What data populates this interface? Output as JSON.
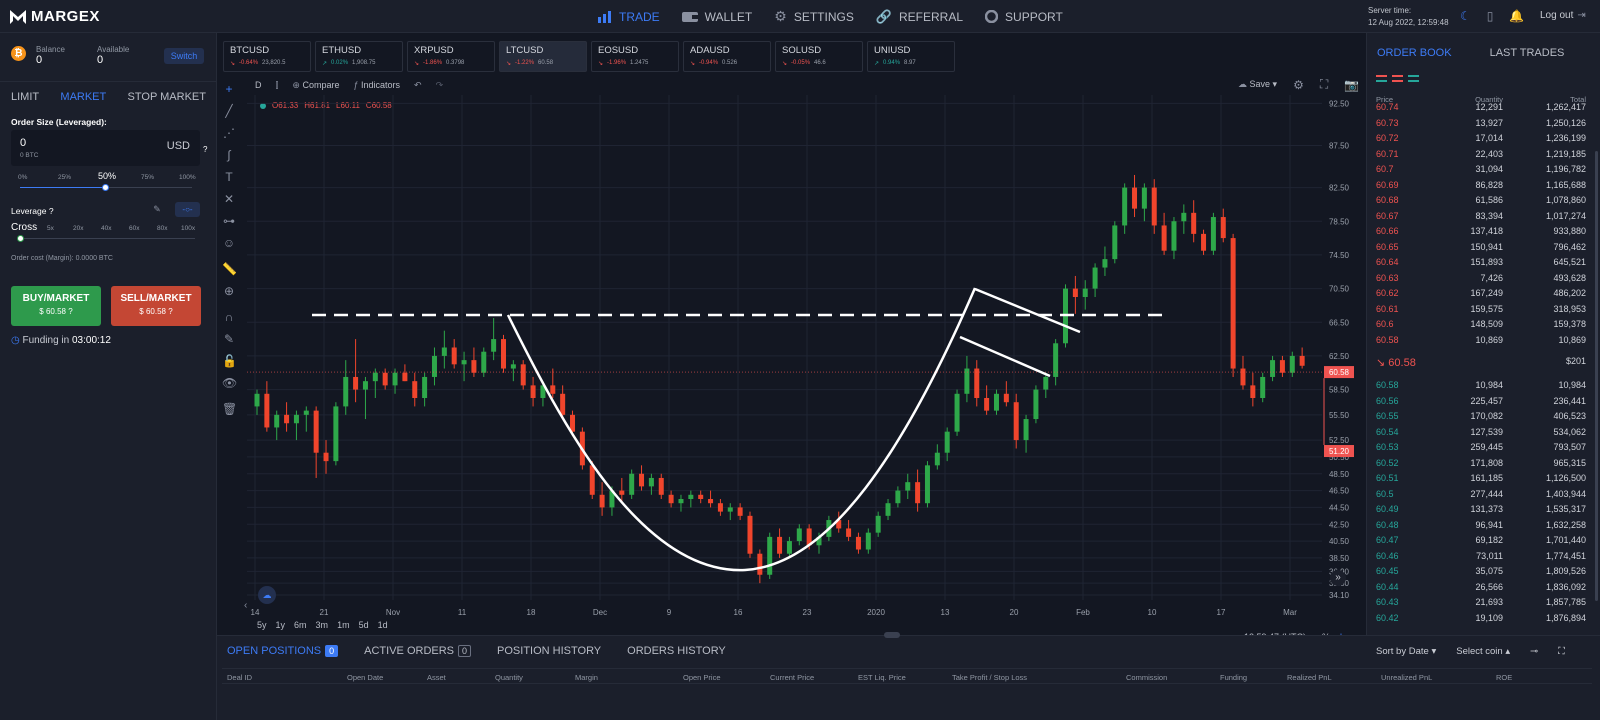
{
  "brand": "MARGEX",
  "nav": [
    {
      "label": "TRADE",
      "icon": "bar-chart-icon"
    },
    {
      "label": "WALLET",
      "icon": "wallet-icon"
    },
    {
      "label": "SETTINGS",
      "icon": "gear-icon"
    },
    {
      "label": "REFERRAL",
      "icon": "link-icon"
    },
    {
      "label": "SUPPORT",
      "icon": "lifebuoy-icon"
    }
  ],
  "server": {
    "label": "Server time:",
    "time": "12 Aug 2022, 12:59:48"
  },
  "logout": "Log out",
  "account": {
    "balance_label": "Balance",
    "balance": "0",
    "available_label": "Available",
    "available": "0",
    "switch": "Switch"
  },
  "order_tabs": [
    "LIMIT",
    "MARKET",
    "STOP MARKET"
  ],
  "order": {
    "size_label": "Order Size (Leveraged):",
    "value": "0",
    "sub": "0 BTC",
    "currency": "USD",
    "slider": [
      "0%",
      "25%",
      "50%",
      "75%",
      "100%"
    ],
    "slider_value": 0.5,
    "leverage_label": "Leverage",
    "leverage_opts": [
      "Cross",
      "5x",
      "20x",
      "40x",
      "60x",
      "80x",
      "100x"
    ],
    "cost": "Order cost (Margin): 0.0000 BTC",
    "buy": "BUY/MARKET",
    "buy_price": "$ 60.58",
    "sell": "SELL/MARKET",
    "sell_price": "$ 60.58",
    "funding_label": "Funding in",
    "funding": "03:00:12"
  },
  "tickers": [
    {
      "sym": "BTCUSD",
      "chg": "-0.64%",
      "price": "23,820.5",
      "dir": "neg"
    },
    {
      "sym": "ETHUSD",
      "chg": "0.02%",
      "price": "1,908.75",
      "dir": "pos"
    },
    {
      "sym": "XRPUSD",
      "chg": "-1.86%",
      "price": "0.3798",
      "dir": "neg"
    },
    {
      "sym": "LTCUSD",
      "chg": "-1.22%",
      "price": "60.58",
      "dir": "neg"
    },
    {
      "sym": "EOSUSD",
      "chg": "-1.96%",
      "price": "1.2475",
      "dir": "neg"
    },
    {
      "sym": "ADAUSD",
      "chg": "-0.94%",
      "price": "0.526",
      "dir": "neg"
    },
    {
      "sym": "SOLUSD",
      "chg": "-0.05%",
      "price": "46.6",
      "dir": "neg"
    },
    {
      "sym": "UNIUSD",
      "chg": "0.94%",
      "price": "8.97",
      "dir": "pos"
    }
  ],
  "toolbar": {
    "interval": "D",
    "compare": "Compare",
    "indicators": "Indicators",
    "save": "Save"
  },
  "ohlc": {
    "o": "O61.33",
    "h": "H61.81",
    "l": "L60.11",
    "c": "C60.58"
  },
  "timeframes": [
    "5y",
    "1y",
    "6m",
    "3m",
    "1m",
    "5d",
    "1d"
  ],
  "chart_footer": {
    "time": "12:59:47 (UTC)",
    "pct": "%",
    "log": "log",
    "auto": "auto"
  },
  "chart_data": {
    "type": "candlestick",
    "ylim": [
      33.5,
      93.5
    ],
    "y_ticks": [
      "92.50",
      "87.50",
      "82.50",
      "78.50",
      "74.50",
      "70.50",
      "66.50",
      "62.50",
      "58.50",
      "55.50",
      "52.50",
      "50.50",
      "48.50",
      "46.50",
      "44.50",
      "42.50",
      "40.50",
      "38.50",
      "36.90",
      "35.50",
      "34.10"
    ],
    "x_ticks": [
      "14",
      "21",
      "Nov",
      "11",
      "18",
      "Dec",
      "9",
      "16",
      "23",
      "2020",
      "13",
      "20",
      "Feb",
      "10",
      "17",
      "Mar"
    ],
    "last_price": "60.58",
    "marker": "51.20",
    "candles": [
      [
        56.5,
        58.5,
        55.5,
        58.0
      ],
      [
        58.0,
        59.5,
        53.5,
        54.0
      ],
      [
        54.0,
        56.0,
        52.5,
        55.5
      ],
      [
        55.5,
        57.0,
        53.5,
        54.5
      ],
      [
        54.5,
        56.0,
        52.5,
        55.5
      ],
      [
        55.5,
        56.5,
        53.5,
        56.0
      ],
      [
        56.0,
        56.5,
        48.0,
        51.0
      ],
      [
        51.0,
        52.5,
        48.5,
        50.0
      ],
      [
        50.0,
        57.0,
        49.5,
        56.5
      ],
      [
        56.5,
        62.0,
        55.5,
        60.0
      ],
      [
        60.0,
        64.5,
        57.0,
        58.5
      ],
      [
        58.5,
        60.0,
        55.0,
        59.5
      ],
      [
        59.5,
        61.0,
        57.5,
        60.5
      ],
      [
        60.5,
        61.0,
        58.5,
        59.0
      ],
      [
        59.0,
        61.0,
        58.0,
        60.5
      ],
      [
        60.5,
        61.5,
        59.5,
        59.5
      ],
      [
        59.5,
        60.5,
        56.5,
        57.5
      ],
      [
        57.5,
        60.5,
        56.5,
        60.0
      ],
      [
        60.0,
        63.5,
        59.0,
        62.5
      ],
      [
        62.5,
        65.5,
        61.0,
        63.5
      ],
      [
        63.5,
        64.5,
        61.0,
        61.5
      ],
      [
        61.5,
        63.0,
        59.5,
        62.0
      ],
      [
        62.0,
        63.5,
        60.0,
        60.5
      ],
      [
        60.5,
        63.5,
        60.0,
        63.0
      ],
      [
        63.0,
        67.0,
        62.0,
        64.5
      ],
      [
        64.5,
        65.0,
        60.5,
        61.0
      ],
      [
        61.0,
        62.0,
        59.5,
        61.5
      ],
      [
        61.5,
        62.0,
        58.5,
        59.0
      ],
      [
        59.0,
        60.0,
        56.5,
        57.5
      ],
      [
        57.5,
        59.5,
        56.5,
        59.0
      ],
      [
        59.0,
        61.0,
        57.5,
        58.0
      ],
      [
        58.0,
        59.0,
        55.0,
        55.5
      ],
      [
        55.5,
        56.0,
        53.0,
        53.5
      ],
      [
        53.5,
        54.0,
        49.0,
        49.5
      ],
      [
        49.5,
        50.0,
        45.5,
        46.0
      ],
      [
        46.0,
        47.5,
        43.5,
        44.5
      ],
      [
        44.5,
        47.0,
        43.5,
        46.5
      ],
      [
        46.5,
        48.0,
        45.0,
        46.0
      ],
      [
        46.0,
        49.0,
        45.5,
        48.5
      ],
      [
        48.5,
        49.5,
        46.5,
        47.0
      ],
      [
        47.0,
        48.5,
        46.0,
        48.0
      ],
      [
        48.0,
        48.5,
        45.5,
        46.0
      ],
      [
        46.0,
        46.5,
        44.5,
        45.0
      ],
      [
        45.0,
        46.0,
        44.0,
        45.5
      ],
      [
        45.5,
        46.5,
        44.5,
        46.0
      ],
      [
        46.0,
        46.5,
        45.0,
        45.5
      ],
      [
        45.5,
        46.5,
        44.5,
        45.0
      ],
      [
        45.0,
        45.5,
        43.5,
        44.0
      ],
      [
        44.0,
        45.0,
        43.0,
        44.5
      ],
      [
        44.5,
        45.0,
        43.0,
        43.5
      ],
      [
        43.5,
        44.0,
        38.5,
        39.0
      ],
      [
        39.0,
        39.5,
        35.5,
        36.5
      ],
      [
        36.5,
        41.5,
        36.0,
        41.0
      ],
      [
        41.0,
        42.0,
        38.5,
        39.0
      ],
      [
        39.0,
        41.0,
        38.5,
        40.5
      ],
      [
        40.5,
        42.5,
        40.0,
        42.0
      ],
      [
        42.0,
        42.5,
        39.5,
        40.0
      ],
      [
        40.0,
        41.5,
        39.0,
        41.0
      ],
      [
        41.0,
        43.5,
        40.5,
        43.0
      ],
      [
        43.0,
        44.0,
        41.5,
        42.0
      ],
      [
        42.0,
        43.0,
        40.5,
        41.0
      ],
      [
        41.0,
        41.5,
        39.0,
        39.5
      ],
      [
        39.5,
        42.0,
        39.0,
        41.5
      ],
      [
        41.5,
        44.0,
        41.0,
        43.5
      ],
      [
        43.5,
        45.5,
        43.0,
        45.0
      ],
      [
        45.0,
        47.0,
        44.5,
        46.5
      ],
      [
        46.5,
        48.5,
        45.5,
        47.5
      ],
      [
        47.5,
        49.0,
        44.0,
        45.0
      ],
      [
        45.0,
        50.0,
        44.5,
        49.5
      ],
      [
        49.5,
        52.0,
        49.0,
        51.0
      ],
      [
        51.0,
        54.0,
        50.0,
        53.5
      ],
      [
        53.5,
        58.5,
        53.0,
        58.0
      ],
      [
        58.0,
        62.5,
        57.0,
        61.0
      ],
      [
        61.0,
        62.0,
        56.5,
        57.5
      ],
      [
        57.5,
        59.0,
        55.5,
        56.0
      ],
      [
        56.0,
        58.5,
        55.5,
        58.0
      ],
      [
        58.0,
        59.5,
        56.5,
        57.0
      ],
      [
        57.0,
        58.0,
        51.5,
        52.5
      ],
      [
        52.5,
        55.5,
        51.0,
        55.0
      ],
      [
        55.0,
        59.0,
        54.5,
        58.5
      ],
      [
        58.5,
        60.5,
        57.5,
        60.0
      ],
      [
        60.0,
        64.5,
        59.0,
        64.0
      ],
      [
        64.0,
        71.0,
        63.5,
        70.5
      ],
      [
        70.5,
        72.0,
        67.5,
        69.5
      ],
      [
        69.5,
        71.5,
        68.0,
        70.5
      ],
      [
        70.5,
        73.5,
        69.5,
        73.0
      ],
      [
        73.0,
        75.5,
        72.0,
        74.0
      ],
      [
        74.0,
        78.5,
        73.5,
        78.0
      ],
      [
        78.0,
        83.0,
        77.0,
        82.5
      ],
      [
        82.5,
        84.0,
        79.0,
        80.0
      ],
      [
        80.0,
        83.0,
        78.5,
        82.5
      ],
      [
        82.5,
        83.5,
        77.0,
        78.0
      ],
      [
        78.0,
        79.5,
        74.5,
        75.0
      ],
      [
        75.0,
        79.0,
        74.0,
        78.5
      ],
      [
        78.5,
        80.5,
        77.0,
        79.5
      ],
      [
        79.5,
        81.0,
        76.0,
        77.0
      ],
      [
        77.0,
        77.5,
        74.5,
        75.0
      ],
      [
        75.0,
        79.5,
        74.5,
        79.0
      ],
      [
        79.0,
        80.0,
        76.0,
        76.5
      ],
      [
        76.5,
        77.0,
        60.0,
        61.0
      ],
      [
        61.0,
        62.5,
        58.5,
        59.0
      ],
      [
        59.0,
        60.5,
        56.5,
        57.5
      ],
      [
        57.5,
        60.5,
        57.0,
        60.0
      ],
      [
        60.0,
        62.5,
        59.5,
        62.0
      ],
      [
        62.0,
        62.5,
        60.0,
        60.5
      ],
      [
        60.5,
        63.0,
        60.0,
        62.5
      ],
      [
        62.5,
        63.5,
        61.0,
        61.33
      ]
    ]
  },
  "orderbook": {
    "tabs": [
      "ORDER BOOK",
      "LAST TRADES"
    ],
    "headers": [
      "Price",
      "Quantity",
      "Total"
    ],
    "asks": [
      [
        "60.74",
        "12,291",
        "1,262,417"
      ],
      [
        "60.73",
        "13,927",
        "1,250,126"
      ],
      [
        "60.72",
        "17,014",
        "1,236,199"
      ],
      [
        "60.71",
        "22,403",
        "1,219,185"
      ],
      [
        "60.7",
        "31,094",
        "1,196,782"
      ],
      [
        "60.69",
        "86,828",
        "1,165,688"
      ],
      [
        "60.68",
        "61,586",
        "1,078,860"
      ],
      [
        "60.67",
        "83,394",
        "1,017,274"
      ],
      [
        "60.66",
        "137,418",
        "933,880"
      ],
      [
        "60.65",
        "150,941",
        "796,462"
      ],
      [
        "60.64",
        "151,893",
        "645,521"
      ],
      [
        "60.63",
        "7,426",
        "493,628"
      ],
      [
        "60.62",
        "167,249",
        "486,202"
      ],
      [
        "60.61",
        "159,575",
        "318,953"
      ],
      [
        "60.6",
        "148,509",
        "159,378"
      ],
      [
        "60.58",
        "10,869",
        "10,869"
      ]
    ],
    "last": {
      "price": "60.58",
      "total": "$201"
    },
    "bids": [
      [
        "60.58",
        "10,984",
        "10,984"
      ],
      [
        "60.56",
        "225,457",
        "236,441"
      ],
      [
        "60.55",
        "170,082",
        "406,523"
      ],
      [
        "60.54",
        "127,539",
        "534,062"
      ],
      [
        "60.53",
        "259,445",
        "793,507"
      ],
      [
        "60.52",
        "171,808",
        "965,315"
      ],
      [
        "60.51",
        "161,185",
        "1,126,500"
      ],
      [
        "60.5",
        "277,444",
        "1,403,944"
      ],
      [
        "60.49",
        "131,373",
        "1,535,317"
      ],
      [
        "60.48",
        "96,941",
        "1,632,258"
      ],
      [
        "60.47",
        "69,182",
        "1,701,440"
      ],
      [
        "60.46",
        "73,011",
        "1,774,451"
      ],
      [
        "60.45",
        "35,075",
        "1,809,526"
      ],
      [
        "60.44",
        "26,566",
        "1,836,092"
      ],
      [
        "60.43",
        "21,693",
        "1,857,785"
      ],
      [
        "60.42",
        "19,109",
        "1,876,894"
      ]
    ]
  },
  "positions": {
    "tabs": [
      {
        "label": "OPEN POSITIONS",
        "count": "0"
      },
      {
        "label": "ACTIVE ORDERS",
        "count": "0"
      },
      {
        "label": "POSITION HISTORY"
      },
      {
        "label": "ORDERS HISTORY"
      }
    ],
    "sort": "Sort by Date",
    "select": "Select coin",
    "columns": [
      "Deal ID",
      "Open Date",
      "Asset",
      "Quantity",
      "Margin",
      "Open Price",
      "Current Price",
      "EST Liq. Price",
      "Take Profit / Stop Loss",
      "Commission",
      "Funding",
      "Realized PnL",
      "Unrealized PnL",
      "ROE"
    ]
  }
}
